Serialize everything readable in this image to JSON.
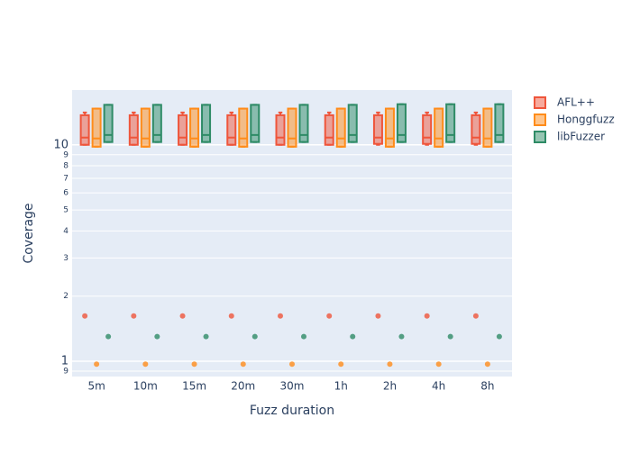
{
  "chart_data": {
    "type": "box",
    "x_label": "Fuzz duration",
    "y_label": "Coverage",
    "categories": [
      "5m",
      "10m",
      "15m",
      "20m",
      "30m",
      "1h",
      "2h",
      "4h",
      "8h"
    ],
    "log_y": true,
    "grid": true,
    "legend_position": "right",
    "ylim": [
      0.85,
      17.9
    ],
    "yticks": [
      {
        "value": 0.9,
        "label": "9"
      },
      1,
      2,
      3,
      4,
      5,
      6,
      7,
      8,
      9,
      10
    ],
    "series": [
      {
        "name": "AFL++",
        "color": "#EF553B",
        "lowerfence": [
          10,
          10,
          10,
          10,
          10,
          10,
          10,
          10,
          10
        ],
        "q1": [
          10,
          10,
          10,
          10,
          10,
          10,
          10.1,
          10.1,
          10.1
        ],
        "median": [
          10.8,
          10.8,
          10.8,
          10.8,
          10.8,
          10.8,
          10.8,
          10.8,
          10.8
        ],
        "q3": [
          13.7,
          13.7,
          13.7,
          13.7,
          13.7,
          13.7,
          13.7,
          13.7,
          13.7
        ],
        "upperfence": [
          14.1,
          14.1,
          14.1,
          14.1,
          14.1,
          14.1,
          14.1,
          14.1,
          14.1
        ],
        "outliers": [
          [
            1.62
          ],
          [
            1.62
          ],
          [
            1.62
          ],
          [
            1.62
          ],
          [
            1.62
          ],
          [
            1.62
          ],
          [
            1.62
          ],
          [
            1.62
          ],
          [
            1.62
          ]
        ]
      },
      {
        "name": "Honggfuzz",
        "color": "#FF8C1A",
        "lowerfence": [
          9.8,
          9.8,
          9.8,
          9.8,
          9.8,
          9.8,
          9.8,
          9.8,
          9.8
        ],
        "q1": [
          9.8,
          9.8,
          9.8,
          9.8,
          9.8,
          9.8,
          9.8,
          9.8,
          9.8
        ],
        "median": [
          10.7,
          10.7,
          10.7,
          10.7,
          10.7,
          10.7,
          10.7,
          10.7,
          10.7
        ],
        "q3": [
          14.7,
          14.7,
          14.7,
          14.7,
          14.7,
          14.7,
          14.7,
          14.7,
          14.7
        ],
        "upperfence": [
          14.7,
          14.7,
          14.7,
          14.7,
          14.7,
          14.7,
          14.7,
          14.7,
          14.7
        ],
        "outliers": [
          [
            0.97
          ],
          [
            0.97
          ],
          [
            0.97
          ],
          [
            0.97
          ],
          [
            0.97
          ],
          [
            0.97
          ],
          [
            0.97
          ],
          [
            0.97
          ],
          [
            0.97
          ]
        ]
      },
      {
        "name": "libFuzzer",
        "color": "#2E8B66",
        "lowerfence": [
          10.3,
          10.3,
          10.3,
          10.3,
          10.3,
          10.3,
          10.3,
          10.3,
          10.3
        ],
        "q1": [
          10.3,
          10.3,
          10.3,
          10.3,
          10.3,
          10.3,
          10.3,
          10.3,
          10.3
        ],
        "median": [
          11.1,
          11.1,
          11.1,
          11.1,
          11.1,
          11.1,
          11.1,
          11.1,
          11.1
        ],
        "q3": [
          15.3,
          15.3,
          15.3,
          15.3,
          15.3,
          15.3,
          15.4,
          15.4,
          15.4
        ],
        "upperfence": [
          15.3,
          15.3,
          15.3,
          15.3,
          15.3,
          15.3,
          15.4,
          15.4,
          15.4
        ],
        "outliers": [
          [
            1.3
          ],
          [
            1.3
          ],
          [
            1.3
          ],
          [
            1.3
          ],
          [
            1.3
          ],
          [
            1.3
          ],
          [
            1.3
          ],
          [
            1.3
          ],
          [
            1.3
          ]
        ]
      }
    ]
  }
}
